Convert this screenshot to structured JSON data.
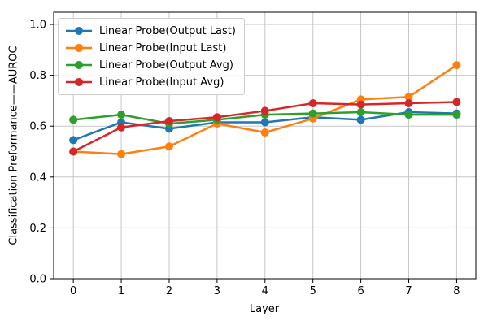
{
  "chart_data": {
    "type": "line",
    "title": "",
    "xlabel": "Layer",
    "ylabel": "Classification Preformance——AUROC",
    "x": [
      0,
      1,
      2,
      3,
      4,
      5,
      6,
      7,
      8
    ],
    "series": [
      {
        "name": "Linear Probe(Output Last)",
        "color": "#1f77b4",
        "values": [
          0.545,
          0.615,
          0.59,
          0.615,
          0.615,
          0.635,
          0.625,
          0.655,
          0.65
        ]
      },
      {
        "name": "Linear Probe(Input Last)",
        "color": "#ff7f0e",
        "values": [
          0.5,
          0.49,
          0.52,
          0.61,
          0.575,
          0.63,
          0.705,
          0.715,
          0.84
        ]
      },
      {
        "name": "Linear Probe(Output Avg)",
        "color": "#2ca02c",
        "values": [
          0.625,
          0.645,
          0.61,
          0.625,
          0.645,
          0.65,
          0.655,
          0.645,
          0.645
        ]
      },
      {
        "name": "Linear Probe(Input Avg)",
        "color": "#d62728",
        "values": [
          0.5,
          0.595,
          0.62,
          0.635,
          0.66,
          0.69,
          0.685,
          0.69,
          0.695
        ]
      }
    ],
    "xticks": [
      0,
      1,
      2,
      3,
      4,
      5,
      6,
      7,
      8
    ],
    "ytick_labels": [
      "0.0",
      "0.2",
      "0.4",
      "0.6",
      "0.8",
      "1.0"
    ],
    "ytick_values": [
      0.0,
      0.2,
      0.4,
      0.6,
      0.8,
      1.0
    ],
    "xlim": [
      -0.41,
      8.4
    ],
    "ylim": [
      0.0,
      1.048
    ],
    "grid": true,
    "legend_position": "upper left",
    "grid_color": "#c6c6c6",
    "spine_color": "#000000",
    "background": "#ffffff"
  }
}
